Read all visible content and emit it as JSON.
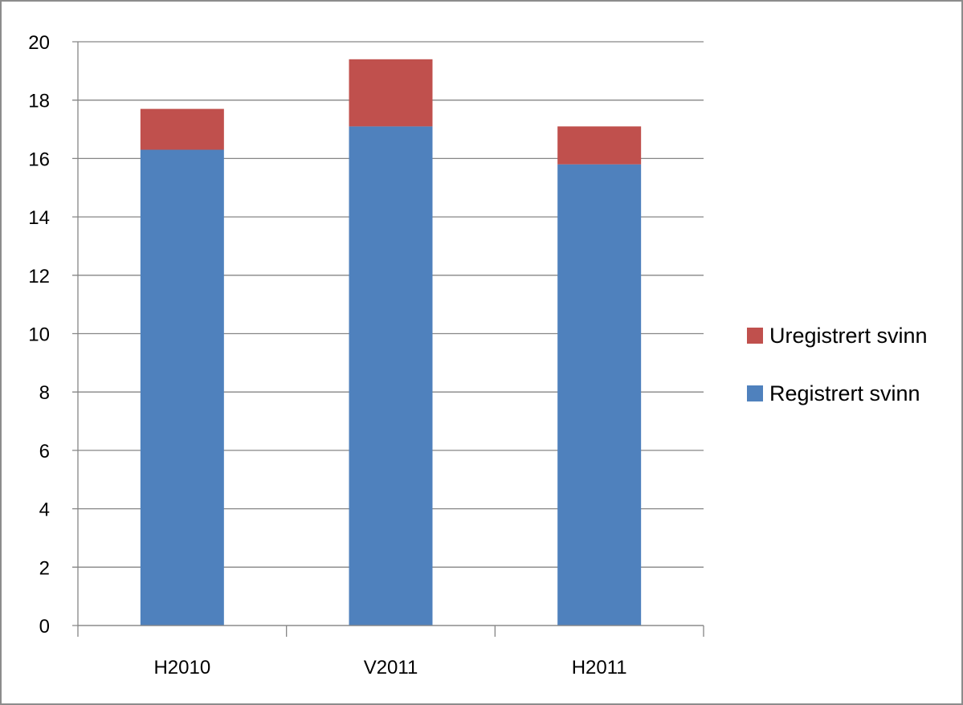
{
  "chart_data": {
    "type": "bar",
    "stacked": true,
    "categories": [
      "H2010",
      "V2011",
      "H2011"
    ],
    "series": [
      {
        "name": "Registrert svinn",
        "values": [
          16.3,
          17.1,
          15.8
        ],
        "color": "#4f81bd"
      },
      {
        "name": "Uregistrert svinn",
        "values": [
          1.4,
          2.3,
          1.3
        ],
        "color": "#c0504d"
      }
    ],
    "ylim": [
      0,
      20
    ],
    "yticks": [
      0,
      2,
      4,
      6,
      8,
      10,
      12,
      14,
      16,
      18,
      20
    ],
    "ytick_labels": [
      "0",
      "2",
      "4",
      "6",
      "8",
      "10",
      "12",
      "14",
      "16",
      "18",
      "20"
    ],
    "title": "",
    "xlabel": "",
    "ylabel": "",
    "grid": true,
    "legend": {
      "position": "right",
      "items": [
        "Uregistrert svinn",
        "Registrert svinn"
      ]
    }
  }
}
